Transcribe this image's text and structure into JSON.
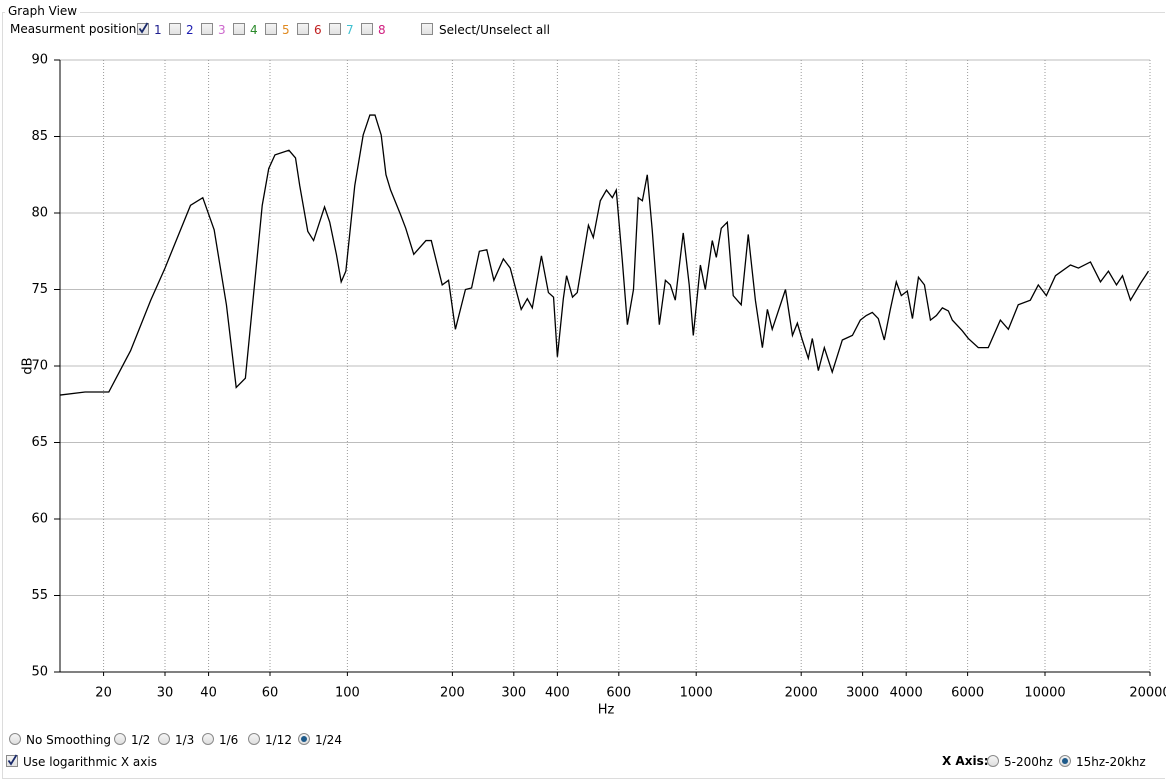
{
  "header": {
    "title": "Graph View",
    "measurement_label": "Measurment position:",
    "positions": [
      {
        "label": "1",
        "color": "#1f1f8f",
        "checked": true
      },
      {
        "label": "2",
        "color": "#1c1cb0",
        "checked": false
      },
      {
        "label": "3",
        "color": "#cc66cc",
        "checked": false
      },
      {
        "label": "4",
        "color": "#2a8a2a",
        "checked": false
      },
      {
        "label": "5",
        "color": "#e08a20",
        "checked": false
      },
      {
        "label": "6",
        "color": "#c02020",
        "checked": false
      },
      {
        "label": "7",
        "color": "#40c0d0",
        "checked": false
      },
      {
        "label": "8",
        "color": "#d02080",
        "checked": false
      }
    ],
    "select_all": {
      "label": "Select/Unselect all",
      "checked": false
    }
  },
  "chart_data": {
    "type": "line",
    "x_label": "Hz",
    "y_label": "dB",
    "log_x": true,
    "grid": true,
    "xlim": [
      15,
      20000
    ],
    "ylim": [
      50,
      90
    ],
    "xticks": [
      20,
      30,
      40,
      60,
      100,
      200,
      300,
      400,
      600,
      1000,
      2000,
      3000,
      4000,
      6000,
      10000,
      20000
    ],
    "yticks": [
      50,
      55,
      60,
      65,
      70,
      75,
      80,
      85,
      90
    ],
    "series": [
      {
        "color": "#000000",
        "x": [
          15,
          17.7,
          20.7,
          23.9,
          27.3,
          30,
          35.5,
          38.5,
          41.5,
          45,
          48,
          51,
          57,
          59.5,
          62,
          68,
          71,
          73,
          77,
          80,
          86,
          89,
          93,
          96,
          99,
          105,
          111,
          116,
          120,
          125,
          129,
          133,
          142,
          147,
          155,
          168,
          174,
          187,
          195,
          204,
          218,
          227,
          239,
          251,
          263,
          280,
          293,
          315,
          328,
          339,
          360,
          377,
          390,
          400,
          416,
          425,
          442,
          456,
          491,
          507,
          531,
          553,
          575,
          590,
          614,
          635,
          661,
          682,
          701,
          724,
          748,
          784,
          816,
          843,
          871,
          918,
          955,
          981,
          1028,
          1062,
          1112,
          1142,
          1180,
          1228,
          1277,
          1346,
          1410,
          1478,
          1548,
          1600,
          1652,
          1803,
          1888,
          1950,
          2015,
          2096,
          2152,
          2240,
          2330,
          2455,
          2624,
          2805,
          2955,
          3073,
          3198,
          3327,
          3461,
          3602,
          3747,
          3873,
          4029,
          4169,
          4337,
          4512,
          4694,
          4882,
          5079,
          5284,
          5424,
          5794,
          6026,
          6437,
          6876,
          7447,
          7852,
          8380,
          9075,
          9566,
          10090,
          10715,
          11830,
          12470,
          13500,
          14420,
          15200,
          16030,
          16680,
          17580,
          18780,
          19800
        ],
        "values": [
          68.1,
          68.3,
          68.3,
          71.0,
          74.3,
          76.4,
          80.5,
          81.0,
          78.9,
          74.0,
          68.6,
          69.2,
          80.5,
          82.9,
          83.8,
          84.1,
          83.6,
          81.8,
          78.8,
          78.2,
          80.4,
          79.4,
          77.3,
          75.5,
          76.2,
          81.8,
          85.1,
          86.4,
          86.4,
          85.1,
          82.5,
          81.5,
          79.9,
          79.0,
          77.3,
          78.2,
          78.2,
          75.3,
          75.6,
          72.4,
          75.0,
          75.1,
          77.5,
          77.6,
          75.6,
          77.0,
          76.4,
          73.7,
          74.4,
          73.8,
          77.2,
          74.8,
          74.5,
          70.6,
          74.4,
          75.9,
          74.5,
          74.8,
          79.2,
          78.4,
          80.8,
          81.5,
          81.0,
          81.5,
          76.9,
          72.7,
          75.0,
          81.0,
          80.8,
          82.5,
          78.9,
          72.7,
          75.6,
          75.3,
          74.3,
          78.7,
          75.3,
          72.0,
          76.6,
          75.0,
          78.2,
          77.1,
          79.0,
          79.4,
          74.6,
          74.0,
          78.6,
          74.3,
          71.2,
          73.7,
          72.4,
          75.0,
          72.0,
          72.8,
          71.7,
          70.5,
          71.8,
          69.7,
          71.2,
          69.6,
          71.7,
          72.0,
          73.0,
          73.3,
          73.5,
          73.1,
          71.7,
          73.7,
          75.5,
          74.6,
          74.9,
          73.1,
          75.8,
          75.3,
          73.0,
          73.3,
          73.8,
          73.6,
          73.0,
          72.3,
          71.8,
          71.2,
          71.2,
          73.0,
          72.4,
          74.0,
          74.3,
          75.3,
          74.6,
          75.9,
          76.6,
          76.4,
          76.8,
          75.5,
          76.2,
          75.3,
          75.9,
          74.3,
          75.4,
          76.2
        ]
      }
    ]
  },
  "smoothing": {
    "options": [
      "No Smoothing",
      "1/2",
      "1/3",
      "1/6",
      "1/12",
      "1/24"
    ],
    "selected": 5
  },
  "log_axis_option": {
    "label": "Use logarithmic X axis",
    "checked": true
  },
  "x_axis_option": {
    "label": "X Axis:",
    "options": [
      "5-200hz",
      "15hz-20khz"
    ],
    "selected": 1
  }
}
